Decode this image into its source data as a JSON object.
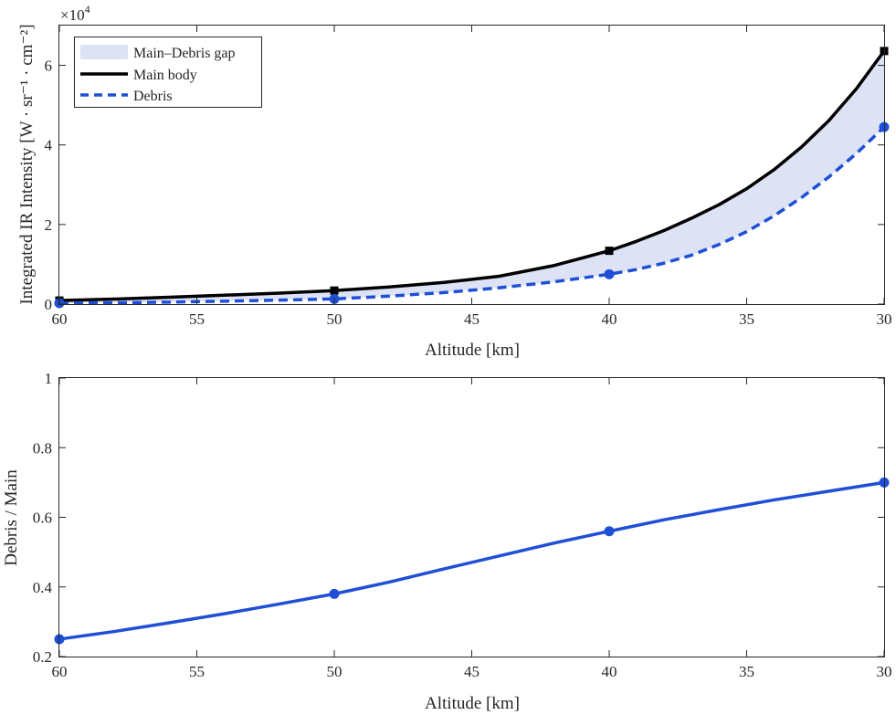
{
  "chart_data": [
    {
      "type": "line",
      "xlabel": "Altitude [km]",
      "ylabel": "Integrated IR Intensity [W · sr⁻¹ · cm⁻²]",
      "exponent_label": "×10",
      "exponent_power": "4",
      "xlim": [
        60,
        30
      ],
      "ylim": [
        0,
        70000
      ],
      "xticks": [
        60,
        55,
        50,
        45,
        40,
        35,
        30
      ],
      "ytick_values": [
        0,
        20000,
        40000,
        60000
      ],
      "ytick_labels": [
        "0",
        "2",
        "4",
        "6"
      ],
      "legend_position": "top-left",
      "series": [
        {
          "name": "Main–Debris gap",
          "kind": "fill",
          "color": "#dde3f5"
        },
        {
          "name": "Main body",
          "kind": "line",
          "style": "solid",
          "color": "#000000",
          "marker": "square",
          "marker_x": [
            60,
            50,
            40,
            30
          ],
          "marker_y": [
            900,
            3400,
            13400,
            63600
          ],
          "x": [
            60,
            58,
            56,
            54,
            52,
            50,
            48,
            46,
            44,
            42,
            40,
            39,
            38,
            37,
            36,
            35,
            34,
            33,
            32,
            31,
            30
          ],
          "y": [
            900,
            1250,
            1730,
            2230,
            2760,
            3400,
            4300,
            5450,
            7000,
            9700,
            13400,
            15800,
            18500,
            21600,
            25000,
            29000,
            33800,
            39500,
            46200,
            54200,
            63600
          ]
        },
        {
          "name": "Debris",
          "kind": "line",
          "style": "dashed",
          "color": "#1f4fd6",
          "marker": "circle",
          "marker_x": [
            60,
            50,
            40,
            30
          ],
          "marker_y": [
            220,
            1300,
            7500,
            44500
          ],
          "x": [
            60,
            58,
            56,
            54,
            52,
            50,
            48,
            46,
            44,
            42,
            40,
            39,
            38,
            37,
            36,
            35,
            34,
            33,
            32,
            31,
            30
          ],
          "y": [
            220,
            330,
            500,
            730,
            1000,
            1300,
            2000,
            2900,
            4100,
            5600,
            7500,
            8700,
            10300,
            12300,
            15000,
            18200,
            22200,
            26800,
            32000,
            37900,
            44500
          ]
        }
      ]
    },
    {
      "type": "line",
      "xlabel": "Altitude [km]",
      "ylabel": "Debris / Main",
      "xlim": [
        60,
        30
      ],
      "ylim": [
        0.2,
        1
      ],
      "xticks": [
        60,
        55,
        50,
        45,
        40,
        35,
        30
      ],
      "ytick_values": [
        0.2,
        0.4,
        0.6,
        0.8,
        1
      ],
      "ytick_labels": [
        "0.2",
        "0.4",
        "0.6",
        "0.8",
        "1"
      ],
      "series": [
        {
          "name": "Debris / Main",
          "kind": "line",
          "style": "solid",
          "color": "#1f4fd6",
          "marker": "circle",
          "marker_x": [
            60,
            50,
            40,
            30
          ],
          "marker_y": [
            0.25,
            0.38,
            0.56,
            0.7
          ],
          "x": [
            60,
            58,
            56,
            54,
            52,
            50,
            48,
            46,
            44,
            42,
            40,
            38,
            36,
            34,
            32,
            30
          ],
          "y": [
            0.25,
            0.272,
            0.297,
            0.323,
            0.351,
            0.38,
            0.414,
            0.452,
            0.489,
            0.526,
            0.56,
            0.593,
            0.622,
            0.65,
            0.675,
            0.7
          ]
        }
      ]
    }
  ]
}
